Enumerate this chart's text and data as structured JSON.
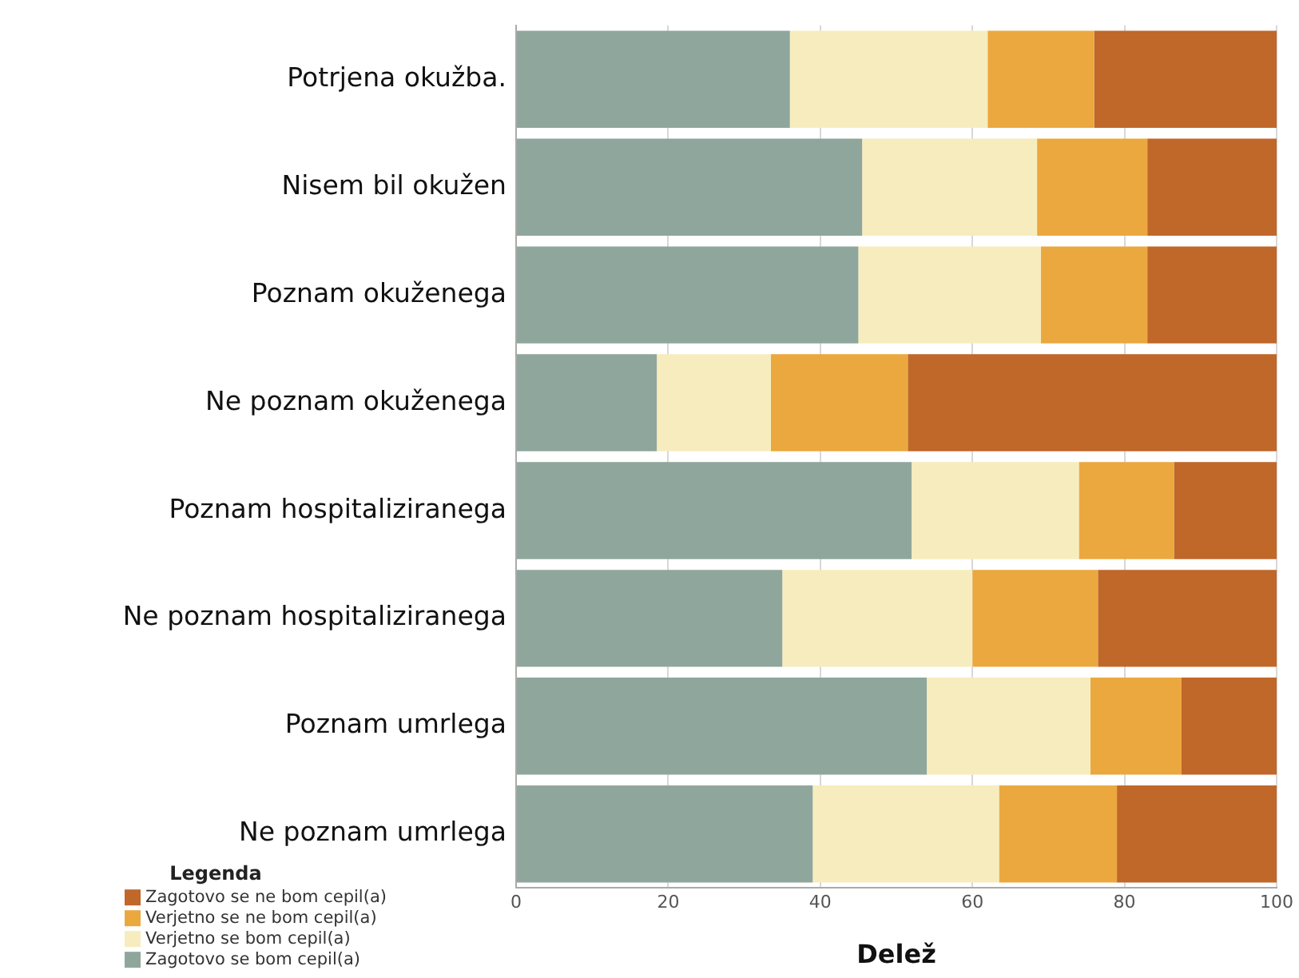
{
  "chart_data": {
    "type": "bar",
    "orientation": "horizontal",
    "stacked": true,
    "xlabel": "Delež",
    "legend_title": "Legenda",
    "legend": "bottom left",
    "categories": [
      "Potrjena okužba.",
      "Nisem bil okužen",
      "Poznam okuženega",
      "Ne poznam okuženega",
      "Poznam hospitaliziranega",
      "Ne poznam hospitaliziranega",
      "Poznam umrlega",
      "Ne poznam umrlega"
    ],
    "series": [
      {
        "name": "Zagotovo se bom cepil(a)",
        "color": "#8fa69c",
        "values": [
          36,
          45.5,
          45,
          18.5,
          52,
          35,
          54,
          39
        ]
      },
      {
        "name": "Verjetno se bom cepil(a)",
        "color": "#f7ecbd",
        "values": [
          26,
          23,
          24,
          15,
          22,
          25,
          21.5,
          24.5
        ]
      },
      {
        "name": "Verjetno se ne bom cepil(a)",
        "color": "#eba83f",
        "values": [
          14,
          14.5,
          14,
          18,
          12.5,
          16.5,
          12,
          15.5
        ]
      },
      {
        "name": "Zagotovo se ne bom cepil(a)",
        "color": "#c0672a",
        "values": [
          24,
          17,
          17,
          48.5,
          13.5,
          23.5,
          12.5,
          21
        ]
      }
    ],
    "xlim": [
      0,
      100
    ],
    "xticks": [
      0,
      20,
      40,
      60,
      80,
      100
    ],
    "grid": "x"
  }
}
